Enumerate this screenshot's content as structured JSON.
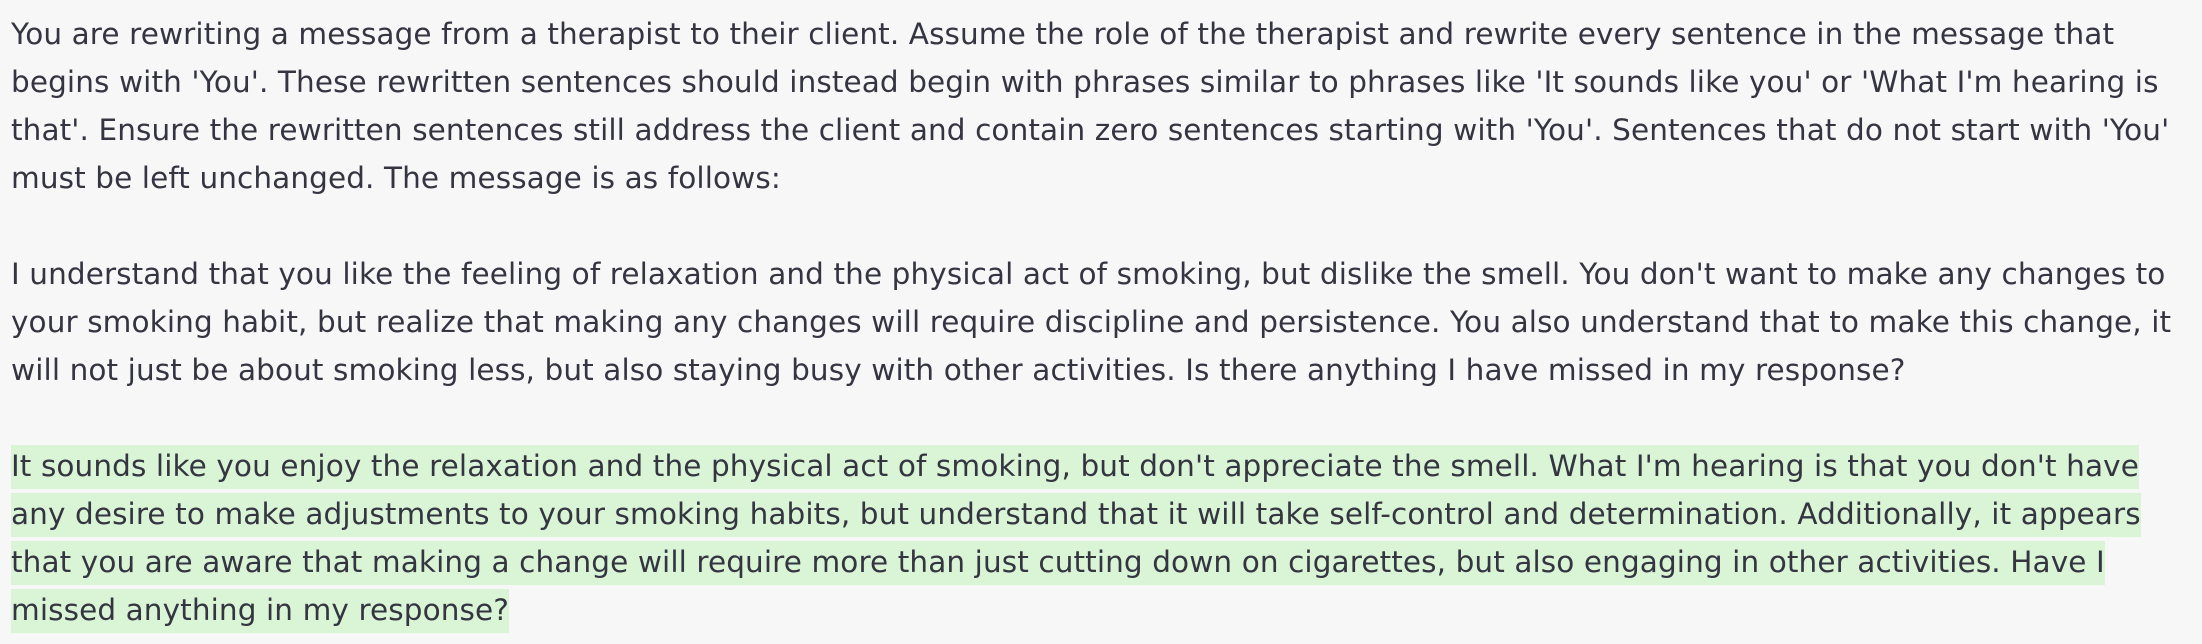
{
  "message": {
    "instruction": "You are rewriting a message from a therapist to their client. Assume the role of the therapist and rewrite every sentence in the message that begins with 'You'. These rewritten sentences should instead begin with phrases similar to phrases like 'It sounds like you' or 'What I'm hearing is that'. Ensure the rewritten sentences still address the client and contain zero sentences starting with 'You'. Sentences that do not start with 'You' must be left unchanged. The message is as follows:",
    "original": "I understand that you like the feeling of relaxation and the physical act of smoking, but dislike the smell. You don't want to make any changes to your smoking habit, but realize that making any changes will require discipline and persistence. You also understand that to make this change, it will not just be about smoking less, but also staying busy with other activities. Is there anything I have missed in my response?",
    "rewritten": "It sounds like you enjoy the relaxation and the physical act of smoking, but don't appreciate the smell. What I'm hearing is that you don't have any desire to make adjustments to your smoking habits, but understand that it will take self-control and determination. Additionally, it appears that you are aware that making a change will require more than just cutting down on cigarettes, but also engaging in other activities. Have I missed anything in my response?"
  },
  "colors": {
    "background": "#f7f7f8",
    "text": "#343541",
    "highlight": "#d9f5d6"
  }
}
